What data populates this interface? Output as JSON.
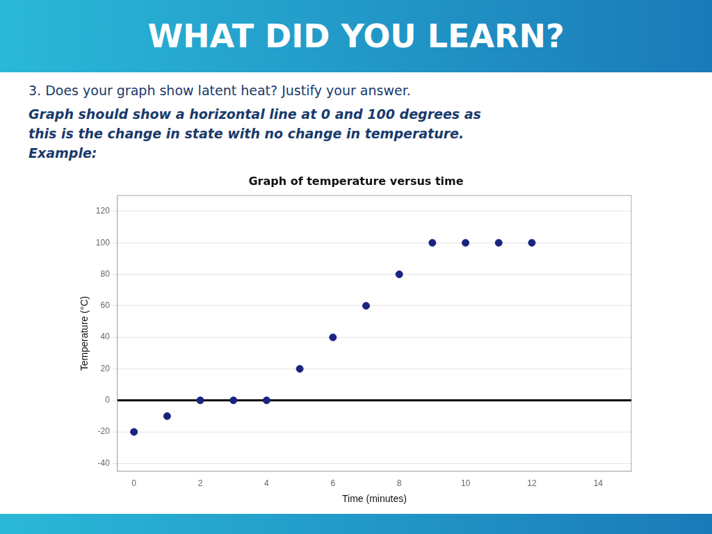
{
  "title": "WHAT DID YOU LEARN?",
  "annotations": [
    "3. Does your graph show latent heat? Justify your answer.",
    "Graph should show a horizontal line at 0 and 100 degrees as",
    "this is the change in state with no change in temperature.",
    "Example:"
  ],
  "chart_data": {
    "type": "scatter",
    "title": "Graph of temperature versus time",
    "xlabel": "Time (minutes)",
    "ylabel": "Temperature (°C)",
    "x": [
      0,
      1,
      2,
      3,
      4,
      5,
      6,
      7,
      8,
      9,
      10,
      11,
      12
    ],
    "values": [
      -20,
      -10,
      0,
      0,
      0,
      20,
      40,
      60,
      80,
      100,
      100,
      100,
      100
    ],
    "color": "#1a237e",
    "xlim": [
      -0.5,
      15
    ],
    "ylim": [
      -45,
      130
    ],
    "xticks": [
      0,
      2,
      4,
      6,
      8,
      10,
      12,
      14
    ],
    "yticks": [
      -40,
      -20,
      0,
      20,
      40,
      60,
      80,
      100,
      120
    ],
    "grid": "y",
    "hlines": [
      0
    ]
  }
}
